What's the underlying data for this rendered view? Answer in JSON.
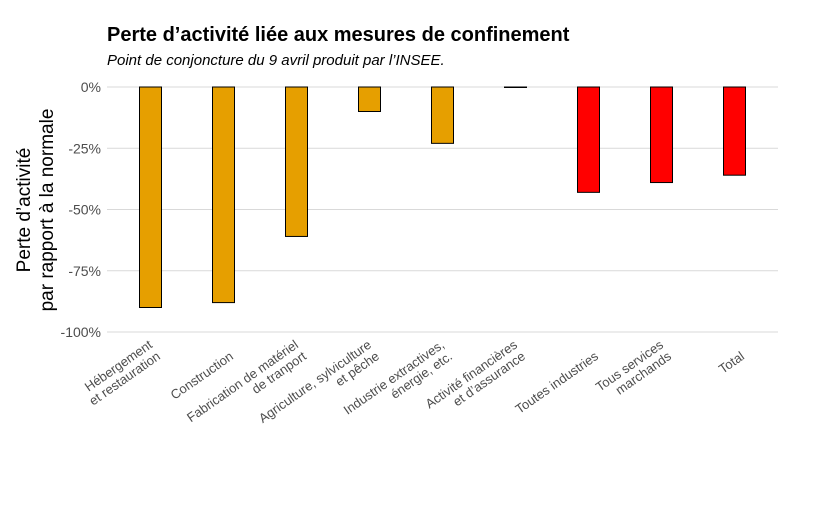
{
  "chart_data": {
    "type": "bar",
    "title": "Perte d’activité liée aux mesures de confinement",
    "subtitle": "Point de conjoncture du 9 avril produit par l’INSEE.",
    "ylabel_lines": [
      "Perte d’activité",
      "par rapport à la normale"
    ],
    "xlabel": "",
    "ylim": [
      -100,
      0
    ],
    "yticks": [
      0,
      -25,
      -50,
      -75,
      -100
    ],
    "ytick_labels": [
      "0%",
      "-25%",
      "-50%",
      "-75%",
      "-100%"
    ],
    "grid": true,
    "categories": [
      [
        "Hébergement",
        "et restauration"
      ],
      [
        "Construction"
      ],
      [
        "Fabrication de matériel",
        "de tranport"
      ],
      [
        "Agriculture, sylviculture",
        "et pêche"
      ],
      [
        "Industrie extractives,",
        "énergie, etc."
      ],
      [
        "Activité financières",
        "et d’assurance"
      ],
      [
        "Toutes industries"
      ],
      [
        "Tous services",
        "marchands"
      ],
      [
        "Total"
      ]
    ],
    "values": [
      -90,
      -88,
      -61,
      -10,
      -23,
      0,
      -43,
      -39,
      -36
    ],
    "colors": [
      "#E69F00",
      "#E69F00",
      "#E69F00",
      "#E69F00",
      "#E69F00",
      "#E69F00",
      "#FF0000",
      "#FF0000",
      "#FF0000"
    ]
  }
}
